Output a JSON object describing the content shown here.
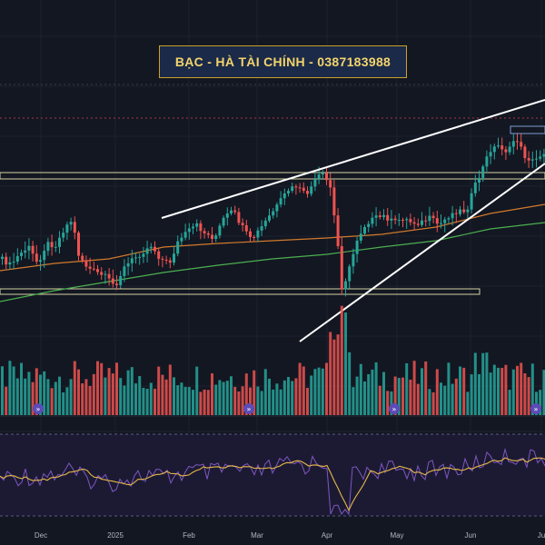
{
  "header": {
    "title": "BẠC - HÀ TÀI CHÍNH - 0387183988"
  },
  "colors": {
    "background": "#131722",
    "up": "#26a69a",
    "down": "#ef5350",
    "ma_fast": "#d27a2c",
    "ma_slow": "#4caf50",
    "rsi": "#7e57c2",
    "rsi_ma": "#e6b84a",
    "trendline": "#ffffff",
    "zone": "#d6d3a3"
  },
  "icons": {
    "event_marker": "double-chevron-icon"
  },
  "chart_data": {
    "type": "candlestick",
    "title": "BẠC - HÀ TÀI CHÍNH - 0387183988",
    "x_ticks": [
      "Dec",
      "2025",
      "Feb",
      "Mar",
      "Apr",
      "May",
      "Jun",
      "Ju"
    ],
    "grid": true,
    "panes": [
      "price",
      "volume",
      "rsi"
    ],
    "price_series": [
      {
        "name": "",
        "kind": "moving-average",
        "color": "#d27a2c"
      },
      {
        "name": "",
        "kind": "moving-average",
        "color": "#4caf50"
      }
    ],
    "rsi_series": [
      {
        "name": "",
        "color": "#7e57c2"
      },
      {
        "name": "",
        "color": "#e6b84a"
      }
    ],
    "annotations": [
      "upper trendline",
      "lower trendline",
      "horizontal support zone",
      "horizontal resistance zone"
    ]
  }
}
